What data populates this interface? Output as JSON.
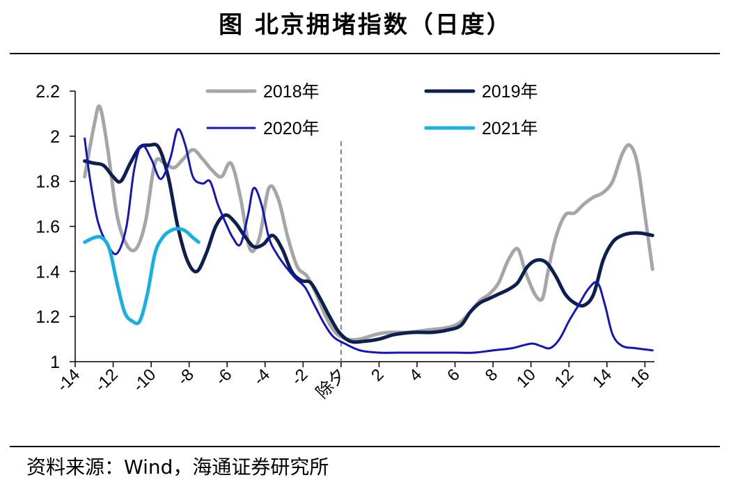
{
  "title": "图  北京拥堵指数（日度）",
  "source": "资料来源：Wind，海通证券研究所",
  "chart_data": {
    "type": "line",
    "title": "北京拥堵指数（日度）",
    "ylim": [
      1,
      2.2
    ],
    "y_ticks": [
      "2.2",
      "2",
      "1.8",
      "1.6",
      "1.4",
      "1.2",
      "1"
    ],
    "y_tick_values": [
      2.2,
      2.0,
      1.8,
      1.6,
      1.4,
      1.2,
      1.0
    ],
    "xlim": [
      -14,
      16.5
    ],
    "x_ticks": [
      "-14",
      "-12",
      "-10",
      "-8",
      "-6",
      "-4",
      "-2",
      "除夕",
      "2",
      "4",
      "6",
      "8",
      "10",
      "12",
      "14",
      "16"
    ],
    "x_tick_values": [
      -14,
      -12,
      -10,
      -8,
      -6,
      -4,
      -2,
      0,
      2,
      4,
      6,
      8,
      10,
      12,
      14,
      16
    ],
    "marker_line": {
      "x": 0,
      "label": "除夕",
      "color": "#808080"
    },
    "grid": false,
    "legend": "top",
    "series": [
      {
        "name": "2018年",
        "color": "#a6a6a6",
        "points": [
          [
            -13.5,
            1.82
          ],
          [
            -13,
            2.05
          ],
          [
            -12.7,
            2.13
          ],
          [
            -12.3,
            1.95
          ],
          [
            -11.8,
            1.65
          ],
          [
            -11.3,
            1.52
          ],
          [
            -10.8,
            1.5
          ],
          [
            -10.3,
            1.62
          ],
          [
            -9.8,
            1.88
          ],
          [
            -9.3,
            1.88
          ],
          [
            -8.8,
            1.86
          ],
          [
            -8.3,
            1.9
          ],
          [
            -7.8,
            1.94
          ],
          [
            -7.3,
            1.9
          ],
          [
            -6.8,
            1.85
          ],
          [
            -6.3,
            1.82
          ],
          [
            -5.8,
            1.88
          ],
          [
            -5.3,
            1.73
          ],
          [
            -4.8,
            1.5
          ],
          [
            -4.3,
            1.55
          ],
          [
            -3.8,
            1.77
          ],
          [
            -3.3,
            1.72
          ],
          [
            -2.8,
            1.55
          ],
          [
            -2.3,
            1.42
          ],
          [
            -1.8,
            1.38
          ],
          [
            -1.3,
            1.3
          ],
          [
            -0.8,
            1.2
          ],
          [
            -0.3,
            1.13
          ],
          [
            0.3,
            1.1
          ],
          [
            1,
            1.1
          ],
          [
            1.8,
            1.12
          ],
          [
            2.5,
            1.13
          ],
          [
            3.5,
            1.13
          ],
          [
            4.5,
            1.14
          ],
          [
            5.5,
            1.15
          ],
          [
            6.2,
            1.17
          ],
          [
            6.8,
            1.22
          ],
          [
            7.3,
            1.27
          ],
          [
            7.8,
            1.3
          ],
          [
            8.3,
            1.35
          ],
          [
            8.8,
            1.45
          ],
          [
            9.3,
            1.5
          ],
          [
            9.7,
            1.4
          ],
          [
            10.2,
            1.3
          ],
          [
            10.6,
            1.28
          ],
          [
            10.9,
            1.4
          ],
          [
            11.3,
            1.55
          ],
          [
            11.8,
            1.65
          ],
          [
            12.3,
            1.66
          ],
          [
            12.8,
            1.7
          ],
          [
            13.3,
            1.73
          ],
          [
            13.8,
            1.75
          ],
          [
            14.3,
            1.8
          ],
          [
            14.8,
            1.92
          ],
          [
            15.2,
            1.96
          ],
          [
            15.6,
            1.88
          ],
          [
            16.0,
            1.65
          ],
          [
            16.4,
            1.41
          ]
        ]
      },
      {
        "name": "2019年",
        "color": "#0d1f4f",
        "points": [
          [
            -13.5,
            1.89
          ],
          [
            -13,
            1.88
          ],
          [
            -12.5,
            1.87
          ],
          [
            -12,
            1.82
          ],
          [
            -11.6,
            1.8
          ],
          [
            -11.1,
            1.88
          ],
          [
            -10.6,
            1.95
          ],
          [
            -10.1,
            1.96
          ],
          [
            -9.6,
            1.95
          ],
          [
            -9.1,
            1.82
          ],
          [
            -8.6,
            1.6
          ],
          [
            -8.1,
            1.45
          ],
          [
            -7.6,
            1.4
          ],
          [
            -7.1,
            1.48
          ],
          [
            -6.6,
            1.6
          ],
          [
            -6.1,
            1.65
          ],
          [
            -5.6,
            1.62
          ],
          [
            -5.1,
            1.56
          ],
          [
            -4.6,
            1.51
          ],
          [
            -4.1,
            1.52
          ],
          [
            -3.6,
            1.56
          ],
          [
            -3.1,
            1.5
          ],
          [
            -2.6,
            1.4
          ],
          [
            -2.1,
            1.36
          ],
          [
            -1.6,
            1.35
          ],
          [
            -1.1,
            1.28
          ],
          [
            -0.6,
            1.2
          ],
          [
            -0.1,
            1.13
          ],
          [
            0.5,
            1.09
          ],
          [
            1.2,
            1.09
          ],
          [
            2,
            1.1
          ],
          [
            2.8,
            1.12
          ],
          [
            3.8,
            1.13
          ],
          [
            4.8,
            1.13
          ],
          [
            5.6,
            1.14
          ],
          [
            6.3,
            1.16
          ],
          [
            6.8,
            1.22
          ],
          [
            7.3,
            1.26
          ],
          [
            7.8,
            1.28
          ],
          [
            8.3,
            1.3
          ],
          [
            8.8,
            1.32
          ],
          [
            9.3,
            1.35
          ],
          [
            9.8,
            1.42
          ],
          [
            10.3,
            1.45
          ],
          [
            10.8,
            1.44
          ],
          [
            11.3,
            1.38
          ],
          [
            11.8,
            1.3
          ],
          [
            12.3,
            1.26
          ],
          [
            12.8,
            1.25
          ],
          [
            13.3,
            1.3
          ],
          [
            13.8,
            1.45
          ],
          [
            14.3,
            1.53
          ],
          [
            14.8,
            1.56
          ],
          [
            15.3,
            1.57
          ],
          [
            15.8,
            1.57
          ],
          [
            16.4,
            1.56
          ]
        ]
      },
      {
        "name": "2020年",
        "color": "#1414b8",
        "points": [
          [
            -13.5,
            1.99
          ],
          [
            -13.2,
            1.8
          ],
          [
            -12.8,
            1.62
          ],
          [
            -12.3,
            1.52
          ],
          [
            -11.8,
            1.48
          ],
          [
            -11.3,
            1.6
          ],
          [
            -10.9,
            1.85
          ],
          [
            -10.5,
            1.96
          ],
          [
            -10.0,
            1.9
          ],
          [
            -9.5,
            1.81
          ],
          [
            -9.0,
            1.9
          ],
          [
            -8.6,
            2.03
          ],
          [
            -8.2,
            1.96
          ],
          [
            -7.8,
            1.82
          ],
          [
            -7.3,
            1.79
          ],
          [
            -6.9,
            1.8
          ],
          [
            -6.5,
            1.7
          ],
          [
            -6.1,
            1.62
          ],
          [
            -5.7,
            1.55
          ],
          [
            -5.3,
            1.52
          ],
          [
            -4.9,
            1.65
          ],
          [
            -4.6,
            1.77
          ],
          [
            -4.2,
            1.7
          ],
          [
            -3.8,
            1.55
          ],
          [
            -3.4,
            1.48
          ],
          [
            -2.9,
            1.42
          ],
          [
            -2.4,
            1.37
          ],
          [
            -1.9,
            1.33
          ],
          [
            -1.4,
            1.25
          ],
          [
            -0.9,
            1.17
          ],
          [
            -0.4,
            1.11
          ],
          [
            0.2,
            1.08
          ],
          [
            1,
            1.05
          ],
          [
            2,
            1.04
          ],
          [
            3,
            1.04
          ],
          [
            4,
            1.04
          ],
          [
            5,
            1.04
          ],
          [
            6,
            1.04
          ],
          [
            7,
            1.04
          ],
          [
            8,
            1.05
          ],
          [
            9,
            1.06
          ],
          [
            10,
            1.08
          ],
          [
            10.5,
            1.07
          ],
          [
            11,
            1.06
          ],
          [
            11.5,
            1.1
          ],
          [
            12,
            1.18
          ],
          [
            12.5,
            1.25
          ],
          [
            13,
            1.32
          ],
          [
            13.5,
            1.35
          ],
          [
            13.9,
            1.25
          ],
          [
            14.3,
            1.12
          ],
          [
            14.8,
            1.07
          ],
          [
            15.5,
            1.06
          ],
          [
            16.4,
            1.05
          ]
        ]
      },
      {
        "name": "2021年",
        "color": "#17b0e0",
        "points": [
          [
            -13.5,
            1.53
          ],
          [
            -13,
            1.55
          ],
          [
            -12.6,
            1.55
          ],
          [
            -12.2,
            1.5
          ],
          [
            -11.8,
            1.35
          ],
          [
            -11.4,
            1.22
          ],
          [
            -11.0,
            1.18
          ],
          [
            -10.6,
            1.18
          ],
          [
            -10.2,
            1.3
          ],
          [
            -9.8,
            1.48
          ],
          [
            -9.4,
            1.55
          ],
          [
            -9.0,
            1.58
          ],
          [
            -8.6,
            1.59
          ],
          [
            -8.2,
            1.58
          ],
          [
            -7.8,
            1.55
          ],
          [
            -7.5,
            1.53
          ]
        ]
      }
    ]
  }
}
